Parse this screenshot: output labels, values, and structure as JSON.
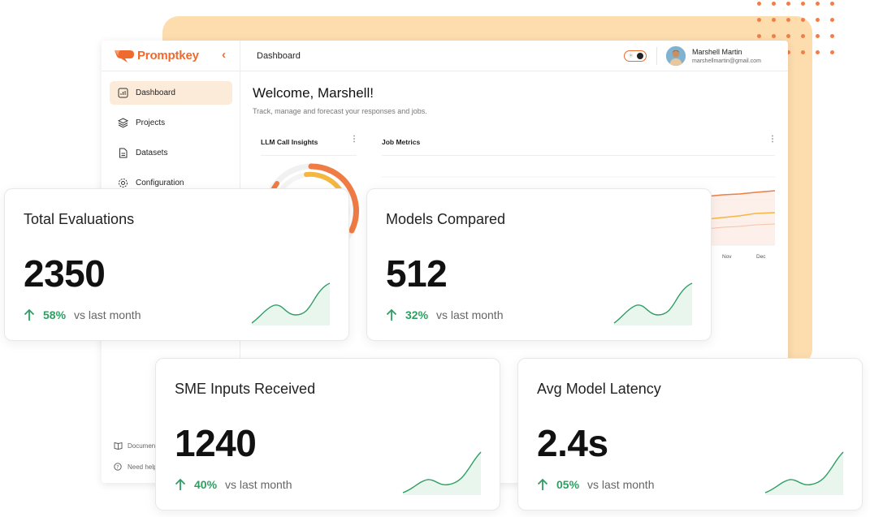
{
  "brand": {
    "name": "Promptkey",
    "accent": "#ef6a2e"
  },
  "sidebar": {
    "items": [
      {
        "label": "Dashboard",
        "icon": "chart-icon",
        "active": true
      },
      {
        "label": "Projects",
        "icon": "layers-icon",
        "active": false
      },
      {
        "label": "Datasets",
        "icon": "file-icon",
        "active": false
      },
      {
        "label": "Configuration",
        "icon": "gear-icon",
        "active": false
      }
    ],
    "footer": [
      {
        "label": "Documen",
        "icon": "book-icon"
      },
      {
        "label": "Need help",
        "icon": "help-icon"
      }
    ]
  },
  "header": {
    "breadcrumb": "Dashboard",
    "theme_toggle": {
      "sun": "☀",
      "mode": "light"
    },
    "user": {
      "name": "Marshell Martin",
      "email": "marshellmartin@gmail.com"
    }
  },
  "main": {
    "welcome": "Welcome, Marshell!",
    "subtitle": "Track, manage and forecast your responses and jobs.",
    "cards": [
      {
        "title": "LLM Call Insights",
        "menu": "⋮"
      },
      {
        "title": "Job Metrics",
        "menu": "⋮",
        "x_labels": [
          "Nov",
          "Dec"
        ]
      }
    ]
  },
  "stats": [
    {
      "title": "Total Evaluations",
      "value": "2350",
      "delta": "58%",
      "delta_label": "vs last month"
    },
    {
      "title": "Models Compared",
      "value": "512",
      "delta": "32%",
      "delta_label": "vs last month"
    },
    {
      "title": "SME Inputs Received",
      "value": "1240",
      "delta": "40%",
      "delta_label": "vs last month"
    },
    {
      "title": "Avg Model Latency",
      "value": "2.4s",
      "delta": "05%",
      "delta_label": "vs last month"
    }
  ],
  "colors": {
    "positive": "#2e9e62",
    "peach": "#fddcae",
    "active_nav": "#fdebd9"
  }
}
